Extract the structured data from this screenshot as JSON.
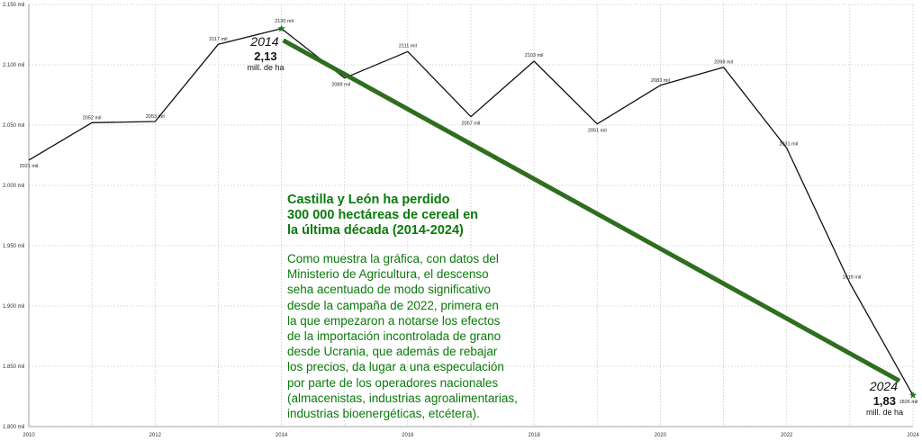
{
  "chart_data": {
    "type": "line",
    "title": "",
    "xlabel": "",
    "ylabel": "",
    "x": [
      2010,
      2011,
      2012,
      2013,
      2014,
      2015,
      2016,
      2017,
      2018,
      2019,
      2020,
      2021,
      2022,
      2023,
      2024
    ],
    "values": [
      2021,
      2052,
      2053,
      2117,
      2130,
      2089,
      2111,
      2057,
      2103,
      2051,
      2083,
      2098,
      2031,
      1919,
      1826
    ],
    "point_labels": [
      "2021 mil",
      "2052 mil",
      "2053 mil",
      "2117 mil",
      "2130 mil",
      "2089 mil",
      "2111 mil",
      "2057 mil",
      "2103 mil",
      "2051 mil",
      "2083 mil",
      "2098 mil",
      "2031 mil",
      "1919 mil",
      "1826 mil"
    ],
    "xlim": [
      2010,
      2024
    ],
    "ylim": [
      1800,
      2150
    ],
    "x_ticks": [
      "2010",
      "2012",
      "2014",
      "2016",
      "2018",
      "2020",
      "2022",
      "2024"
    ],
    "x_tick_values": [
      2010,
      2012,
      2014,
      2016,
      2018,
      2020,
      2022,
      2024
    ],
    "y_ticks": [
      "1.800 mil",
      "1.850 mil",
      "1.900 mil",
      "1.950 mil",
      "2.000 mil",
      "2.050 mil",
      "2.100 mil",
      "2.150 mil"
    ],
    "y_tick_values": [
      1800,
      1850,
      1900,
      1950,
      2000,
      2050,
      2100,
      2150
    ],
    "grid": true,
    "line_color": "#111111",
    "trend": {
      "from": [
        2014,
        2130
      ],
      "to": [
        2024,
        1826
      ],
      "color": "#2e6e1e"
    },
    "annotations": [
      {
        "year": "2014",
        "value": "2,13",
        "unit": "mill. de ha"
      },
      {
        "year": "2024",
        "value": "1,83",
        "unit": "mill. de ha"
      }
    ]
  },
  "text_block": {
    "headline": "Castilla y León ha perdido\n300 000 hectáreas de cereal en\nla última década (2014-2024)",
    "body": "Como muestra la gráfica, con datos del\nMinisterio de Agricultura, el descenso\nseha acentuado de modo significativo\ndesde la campaña de 2022, primera en\nla que empezaron a notarse los efectos\nde la importación incontrolada de grano\ndesde Ucrania, que además de rebajar\nlos precios, da lugar a una especulación\npor parte de los operadores nacionales\n(almacenistas, industrias agroalimentarias,\nindustrias bioenergéticas, etcétera).",
    "color": "#0a7a0a"
  }
}
